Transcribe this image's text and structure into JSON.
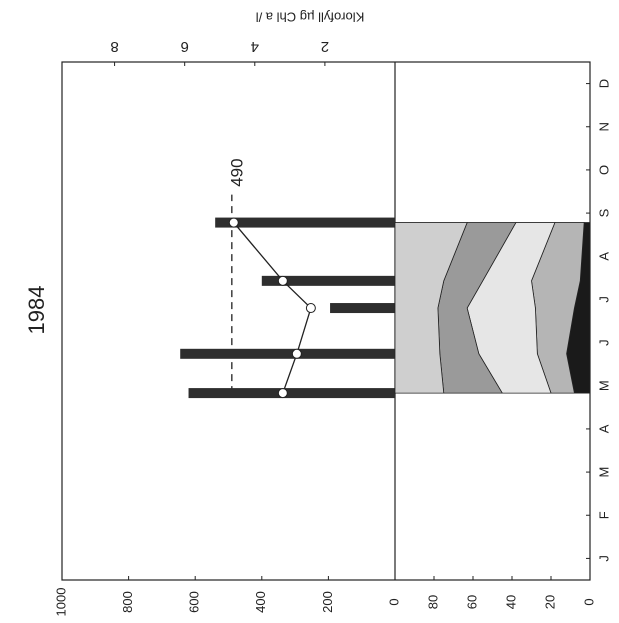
{
  "chart_data": [
    {
      "type": "bar",
      "title": "1984",
      "x": [
        4.33,
        5.24,
        6.3,
        6.93,
        8.28
      ],
      "xlim": [
        0,
        12
      ],
      "xticks": [
        {
          "value": 0.5,
          "label": "J"
        },
        {
          "value": 1.5,
          "label": "F"
        },
        {
          "value": 2.5,
          "label": "M"
        },
        {
          "value": 3.5,
          "label": "A"
        },
        {
          "value": 4.5,
          "label": "M"
        },
        {
          "value": 5.5,
          "label": "J"
        },
        {
          "value": 6.5,
          "label": "J"
        },
        {
          "value": 7.5,
          "label": "A"
        },
        {
          "value": 8.5,
          "label": "S"
        },
        {
          "value": 9.5,
          "label": "O"
        },
        {
          "value": 10.5,
          "label": "N"
        },
        {
          "value": 11.5,
          "label": "D"
        }
      ],
      "ylim": [
        0,
        1000
      ],
      "yticks": [
        0,
        200,
        400,
        600,
        800,
        1000
      ],
      "y2_label": "Klorofyll µg Chl a /l",
      "y2lim": [
        0,
        9.5
      ],
      "y2ticks": [
        2,
        4,
        6,
        8
      ],
      "series": [
        {
          "values": [
            620,
            645,
            195,
            400,
            540
          ],
          "color": "#2e2e2e"
        },
        {
          "values": [
            3.2,
            2.8,
            2.4,
            3.2,
            4.6
          ],
          "axis": "y2",
          "color": "#222222"
        }
      ],
      "annotations": [
        {
          "text": "490",
          "value": 490
        }
      ]
    },
    {
      "type": "area",
      "x": [
        4.33,
        5.24,
        6.3,
        6.93,
        8.28
      ],
      "ylim": [
        0,
        100
      ],
      "yticks": [
        0,
        20,
        40,
        60,
        80
      ],
      "series": [
        {
          "values": [
            8,
            12,
            8,
            5,
            3
          ],
          "color": "#1a1a1a"
        },
        {
          "values": [
            12,
            15,
            20,
            25,
            15
          ],
          "color": "#b5b5b5"
        },
        {
          "values": [
            25,
            30,
            35,
            25,
            20
          ],
          "color": "#e6e6e6"
        },
        {
          "values": [
            30,
            20,
            15,
            20,
            25
          ],
          "color": "#9a9a9a"
        },
        {
          "values": [
            25,
            23,
            22,
            25,
            37
          ],
          "color": "#cfcfcf"
        }
      ]
    }
  ]
}
